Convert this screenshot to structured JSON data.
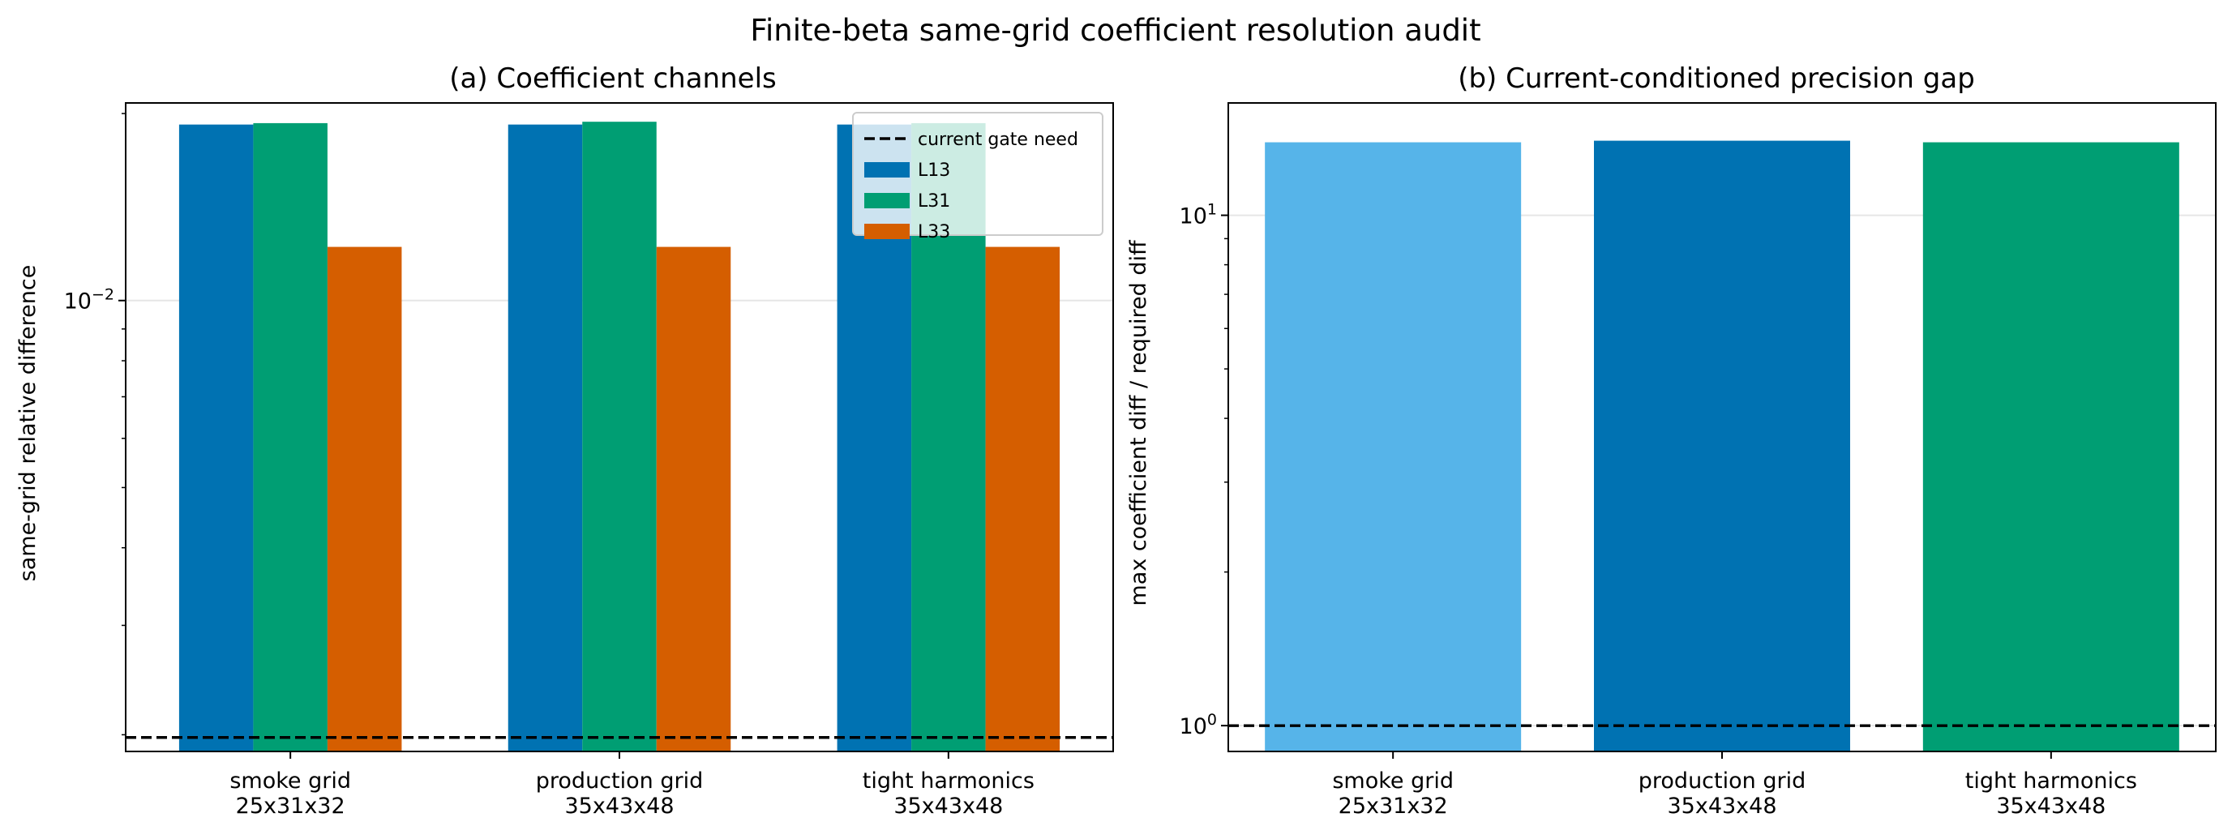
{
  "figure_title": "Finite-beta same-grid coefficient resolution audit",
  "colors": {
    "L13": "#0072b2",
    "L31": "#009e73",
    "L33": "#d55e00",
    "smoke": "#56b4e9",
    "gate_line": "#000000",
    "grid": "#e6e6e6"
  },
  "chart_data": [
    {
      "type": "bar",
      "title": "(a) Coefficient channels",
      "xlabel": "",
      "ylabel": "same-grid relative difference",
      "yscale": "log",
      "ylim": [
        0.00188,
        0.0208
      ],
      "yticks": [
        {
          "value": 0.01,
          "base": "10",
          "exp": "−2"
        }
      ],
      "minor_yticks": [
        0.002,
        0.003,
        0.004,
        0.005,
        0.006,
        0.007,
        0.008,
        0.009,
        0.02
      ],
      "grid": "y-major",
      "legend_position": "top-right",
      "categories": [
        [
          "smoke grid",
          "25x31x32"
        ],
        [
          "production grid",
          "35x43x48"
        ],
        [
          "tight harmonics",
          "35x43x48"
        ]
      ],
      "series": [
        {
          "name": "L13",
          "values": [
            0.0192,
            0.0192,
            0.0192
          ]
        },
        {
          "name": "L31",
          "values": [
            0.0193,
            0.0194,
            0.0193
          ]
        },
        {
          "name": "L33",
          "values": [
            0.0122,
            0.0122,
            0.0122
          ]
        }
      ],
      "reference_line": {
        "name": "current gate need",
        "value": 0.00198
      }
    },
    {
      "type": "bar",
      "title": "(b) Current-conditioned precision gap",
      "xlabel": "",
      "ylabel": "max coefficient diff / required diff",
      "yscale": "log",
      "ylim": [
        0.89,
        16.6
      ],
      "yticks": [
        {
          "value": 1,
          "base": "10",
          "exp": "0"
        },
        {
          "value": 10,
          "base": "10",
          "exp": "1"
        }
      ],
      "minor_yticks": [
        2,
        3,
        4,
        5,
        6,
        7,
        8,
        9
      ],
      "grid": "y-major",
      "categories": [
        [
          "smoke grid",
          "25x31x32"
        ],
        [
          "production grid",
          "35x43x48"
        ],
        [
          "tight harmonics",
          "35x43x48"
        ]
      ],
      "values": [
        13.9,
        14.0,
        13.9
      ],
      "bar_colors": [
        "#56b4e9",
        "#0072b2",
        "#009e73"
      ],
      "reference_line": {
        "value": 1.0
      }
    }
  ]
}
